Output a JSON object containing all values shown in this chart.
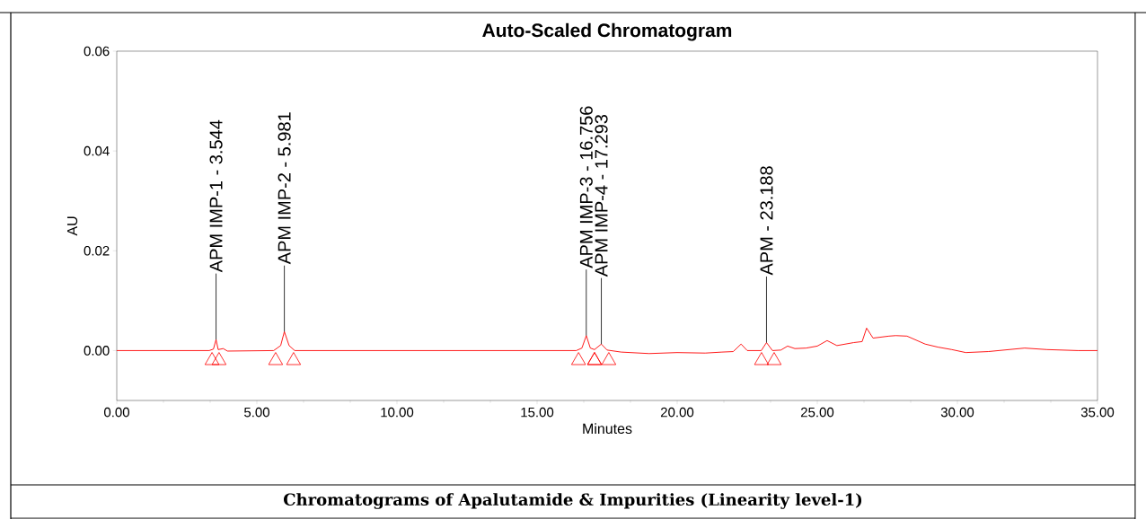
{
  "chart_data": {
    "type": "line",
    "title": "Auto-Scaled Chromatogram",
    "xlabel": "Minutes",
    "ylabel": "AU",
    "xlim": [
      0,
      35
    ],
    "ylim": [
      -0.01,
      0.06
    ],
    "xticks": [
      {
        "value": 0,
        "label": "0.00"
      },
      {
        "value": 5,
        "label": "5.00"
      },
      {
        "value": 10,
        "label": "10.00"
      },
      {
        "value": 15,
        "label": "15.00"
      },
      {
        "value": 20,
        "label": "20.00"
      },
      {
        "value": 25,
        "label": "25.00"
      },
      {
        "value": 30,
        "label": "30.00"
      },
      {
        "value": 35,
        "label": "35.00"
      }
    ],
    "yticks": [
      {
        "value": 0,
        "label": "0.00"
      },
      {
        "value": 0.02,
        "label": "0.02"
      },
      {
        "value": 0.04,
        "label": "0.04"
      },
      {
        "value": 0.06,
        "label": "0.06"
      }
    ],
    "grid": false,
    "series": [
      {
        "color": "#ff0000",
        "marker": "none",
        "x": [
          0,
          3.3,
          3.45,
          3.544,
          3.62,
          3.8,
          3.95,
          5.6,
          5.85,
          5.981,
          6.15,
          6.35,
          16.4,
          16.6,
          16.756,
          16.9,
          17.05,
          17.293,
          17.5,
          18,
          19,
          20,
          21,
          21.6,
          22.0,
          22.28,
          22.5,
          23.0,
          23.188,
          23.4,
          23.7,
          23.94,
          24.2,
          24.6,
          25.0,
          25.35,
          25.7,
          26.3,
          26.6,
          26.76,
          26.99,
          27.56,
          27.8,
          28.2,
          28.85,
          29.3,
          29.8,
          30.3,
          31.1,
          32.4,
          33.2,
          34.3,
          35
        ],
        "values": [
          0,
          0,
          0.0003,
          0.0022,
          0.0002,
          0.0004,
          -0.0001,
          0,
          0.001,
          0.0038,
          0.001,
          0,
          0,
          0.0005,
          0.003,
          0.0005,
          0.0002,
          0.0013,
          0.0001,
          -0.0003,
          -0.0006,
          -0.0004,
          -0.0005,
          -0.0003,
          -0.0002,
          0.0013,
          0,
          0,
          0.0016,
          0,
          0.0001,
          0.0009,
          0.0004,
          0.0005,
          0.0009,
          0.002,
          0.001,
          0.0016,
          0.0018,
          0.0045,
          0.0025,
          0.0029,
          0.003,
          0.0029,
          0.0013,
          0.0007,
          0.0002,
          -0.0004,
          -0.0002,
          0.0005,
          0.0002,
          0,
          0
        ]
      },
      {
        "type": "scatter",
        "color": "#ff0000",
        "marker": "triangle",
        "x": [
          3.4,
          3.65,
          5.67,
          6.31,
          16.48,
          17.05,
          17.05,
          17.56,
          23.01,
          23.46
        ],
        "values": [
          -0.002,
          -0.002,
          -0.002,
          -0.002,
          -0.002,
          -0.002,
          -0.002,
          -0.002,
          -0.002,
          -0.002
        ]
      }
    ],
    "annotations": [
      {
        "text": "APM IMP-1 - 3.544",
        "x": 3.544,
        "y": 0.0022
      },
      {
        "text": "APM IMP-2 - 5.981",
        "x": 5.981,
        "y": 0.0038
      },
      {
        "text": "APM IMP-3 - 16.756",
        "x": 16.756,
        "y": 0.003
      },
      {
        "text": "APM IMP-4 - 17.293",
        "x": 17.293,
        "y": 0.0013
      },
      {
        "text": "APM - 23.188",
        "x": 23.188,
        "y": 0.0016
      },
      "Chromatograms of Apalutamide & Impurities (Linearity level-1)"
    ]
  }
}
